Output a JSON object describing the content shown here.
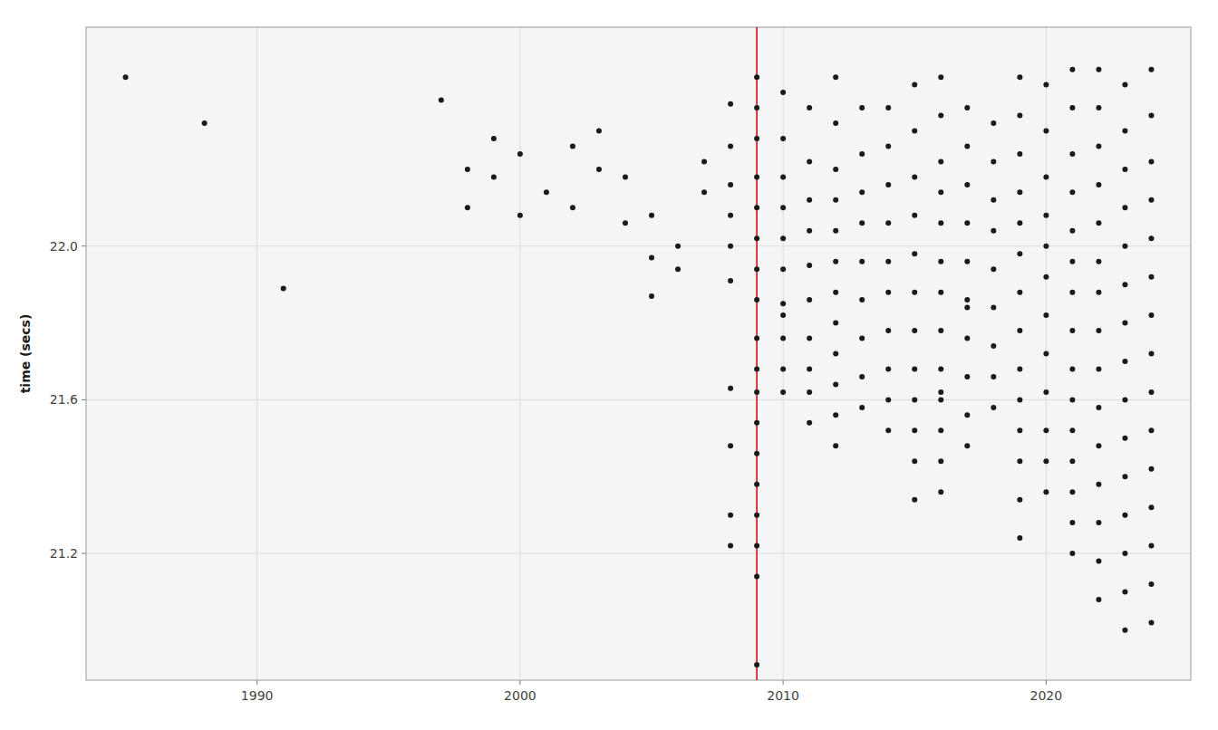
{
  "chart_data": {
    "type": "scatter",
    "ylabel": "time (secs)",
    "color": "#1a1a1a",
    "grid": true,
    "xlim": [
      1983.5,
      2025.5
    ],
    "ylim": [
      20.87,
      22.57
    ],
    "xticks": [
      1990,
      2000,
      2010,
      2020
    ],
    "yticks": [
      21.2,
      21.6,
      {
        "value": 22.0,
        "label": "22.0"
      }
    ],
    "vline": {
      "x": 2009,
      "color": "#CC0000"
    },
    "x": [
      1985,
      1988,
      1991,
      1997,
      1998,
      1998,
      1999,
      1999,
      2000,
      2000,
      2001,
      2002,
      2002,
      2003,
      2003,
      2004,
      2004,
      2005,
      2005,
      2005,
      2006,
      2006,
      2007,
      2007,
      2008,
      2008,
      2008,
      2008,
      2008,
      2008,
      2008,
      2008,
      2008,
      2008,
      2009,
      2009,
      2009,
      2009,
      2009,
      2009,
      2009,
      2009,
      2009,
      2009,
      2009,
      2009,
      2009,
      2009,
      2009,
      2009,
      2009,
      2009,
      2010,
      2010,
      2010,
      2010,
      2010,
      2010,
      2010,
      2010,
      2010,
      2010,
      2010,
      2011,
      2011,
      2011,
      2011,
      2011,
      2011,
      2011,
      2011,
      2011,
      2011,
      2012,
      2012,
      2012,
      2012,
      2012,
      2012,
      2012,
      2012,
      2012,
      2012,
      2012,
      2012,
      2013,
      2013,
      2013,
      2013,
      2013,
      2013,
      2013,
      2013,
      2013,
      2014,
      2014,
      2014,
      2014,
      2014,
      2014,
      2014,
      2014,
      2014,
      2014,
      2015,
      2015,
      2015,
      2015,
      2015,
      2015,
      2015,
      2015,
      2015,
      2015,
      2015,
      2015,
      2016,
      2016,
      2016,
      2016,
      2016,
      2016,
      2016,
      2016,
      2016,
      2016,
      2016,
      2016,
      2016,
      2016,
      2017,
      2017,
      2017,
      2017,
      2017,
      2017,
      2017,
      2017,
      2017,
      2017,
      2017,
      2018,
      2018,
      2018,
      2018,
      2018,
      2018,
      2018,
      2018,
      2018,
      2019,
      2019,
      2019,
      2019,
      2019,
      2019,
      2019,
      2019,
      2019,
      2019,
      2019,
      2019,
      2019,
      2019,
      2020,
      2020,
      2020,
      2020,
      2020,
      2020,
      2020,
      2020,
      2020,
      2020,
      2020,
      2020,
      2021,
      2021,
      2021,
      2021,
      2021,
      2021,
      2021,
      2021,
      2021,
      2021,
      2021,
      2021,
      2021,
      2021,
      2021,
      2022,
      2022,
      2022,
      2022,
      2022,
      2022,
      2022,
      2022,
      2022,
      2022,
      2022,
      2022,
      2022,
      2022,
      2022,
      2023,
      2023,
      2023,
      2023,
      2023,
      2023,
      2023,
      2023,
      2023,
      2023,
      2023,
      2023,
      2023,
      2023,
      2023,
      2024,
      2024,
      2024,
      2024,
      2024,
      2024,
      2024,
      2024,
      2024,
      2024,
      2024,
      2024,
      2024,
      2024,
      2024
    ],
    "values": [
      22.44,
      22.32,
      21.89,
      22.38,
      22.2,
      22.1,
      22.28,
      22.18,
      22.24,
      22.08,
      22.14,
      22.26,
      22.1,
      22.3,
      22.2,
      22.18,
      22.06,
      22.08,
      21.97,
      21.87,
      22.0,
      21.94,
      22.22,
      22.14,
      22.37,
      22.26,
      22.16,
      22.08,
      22.0,
      21.91,
      21.63,
      21.48,
      21.3,
      21.22,
      22.44,
      22.36,
      22.28,
      22.18,
      22.1,
      22.02,
      21.94,
      21.86,
      21.76,
      21.68,
      21.62,
      21.54,
      21.46,
      21.38,
      21.3,
      21.22,
      21.14,
      20.91,
      22.4,
      22.28,
      22.18,
      22.1,
      22.02,
      21.94,
      21.85,
      21.76,
      21.68,
      21.62,
      21.82,
      22.36,
      22.22,
      22.12,
      22.04,
      21.95,
      21.86,
      21.76,
      21.68,
      21.62,
      21.54,
      22.44,
      22.32,
      22.2,
      22.12,
      22.04,
      21.96,
      21.88,
      21.8,
      21.72,
      21.64,
      21.56,
      21.48,
      22.36,
      22.24,
      22.14,
      22.06,
      21.96,
      21.86,
      21.76,
      21.66,
      21.58,
      22.36,
      22.26,
      22.16,
      22.06,
      21.96,
      21.88,
      21.78,
      21.68,
      21.6,
      21.52,
      22.42,
      22.3,
      22.18,
      22.08,
      21.98,
      21.88,
      21.78,
      21.68,
      21.6,
      21.52,
      21.44,
      21.34,
      22.44,
      22.34,
      22.22,
      22.14,
      22.06,
      21.96,
      21.88,
      21.78,
      21.68,
      21.6,
      21.52,
      21.44,
      21.36,
      21.62,
      22.36,
      22.26,
      22.16,
      22.06,
      21.96,
      21.86,
      21.76,
      21.66,
      21.56,
      21.48,
      21.84,
      22.32,
      22.22,
      22.12,
      22.04,
      21.94,
      21.84,
      21.74,
      21.66,
      21.58,
      22.44,
      22.34,
      22.24,
      22.14,
      22.06,
      21.98,
      21.88,
      21.78,
      21.68,
      21.6,
      21.52,
      21.44,
      21.34,
      21.24,
      22.42,
      22.3,
      22.18,
      22.08,
      22.0,
      21.92,
      21.82,
      21.72,
      21.62,
      21.52,
      21.44,
      21.36,
      22.46,
      22.36,
      22.24,
      22.14,
      22.04,
      21.96,
      21.88,
      21.78,
      21.68,
      21.6,
      21.52,
      21.44,
      21.36,
      21.28,
      21.2,
      22.46,
      22.36,
      22.26,
      22.16,
      22.06,
      21.96,
      21.88,
      21.78,
      21.68,
      21.58,
      21.48,
      21.38,
      21.28,
      21.18,
      21.08,
      22.42,
      22.3,
      22.2,
      22.1,
      22.0,
      21.9,
      21.8,
      21.7,
      21.6,
      21.5,
      21.4,
      21.3,
      21.2,
      21.1,
      21.0,
      22.46,
      22.34,
      22.22,
      22.12,
      22.02,
      21.92,
      21.82,
      21.72,
      21.62,
      21.52,
      21.42,
      21.32,
      21.22,
      21.12,
      21.02
    ]
  }
}
